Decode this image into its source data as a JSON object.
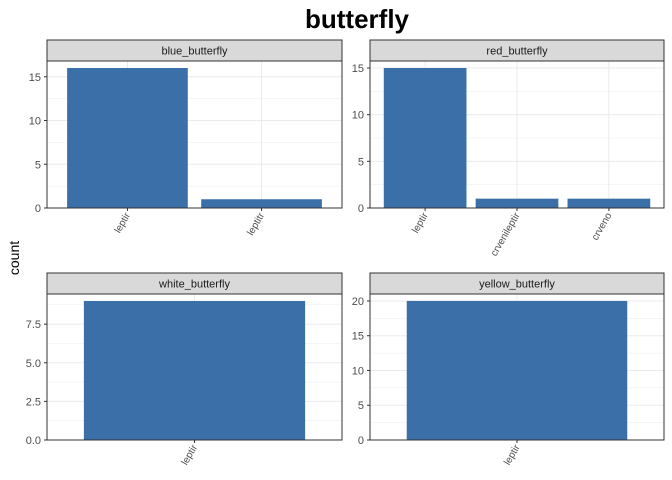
{
  "chart_data": {
    "type": "bar",
    "title": "butterfly",
    "ylabel": "count",
    "xlabel": "",
    "bar_color": "#3a6fa8",
    "strip_fill": "#d9d9d9",
    "panel_border": "#333333",
    "grid_color": "#ebebeb",
    "grid": true,
    "facets": [
      {
        "name": "blue_butterfly",
        "categories": [
          "leptir",
          "leptitr"
        ],
        "values": [
          16,
          1
        ],
        "ylim": [
          0,
          16.8
        ],
        "yticks": [
          0,
          5,
          10,
          15
        ]
      },
      {
        "name": "red_butterfly",
        "categories": [
          "leptir",
          "crvenileptir",
          "crveno"
        ],
        "values": [
          15,
          1,
          1
        ],
        "ylim": [
          0,
          15.75
        ],
        "yticks": [
          0,
          5,
          10,
          15
        ]
      },
      {
        "name": "white_butterfly",
        "categories": [
          "leptir"
        ],
        "values": [
          9
        ],
        "ylim": [
          0,
          9.45
        ],
        "yticks": [
          0.0,
          2.5,
          5.0,
          7.5
        ],
        "ytick_labels": [
          "0.0",
          "2.5",
          "5.0",
          "7.5"
        ]
      },
      {
        "name": "yellow_butterfly",
        "categories": [
          "leptir"
        ],
        "values": [
          20
        ],
        "ylim": [
          0,
          21
        ],
        "yticks": [
          0,
          5,
          10,
          15,
          20
        ]
      }
    ]
  }
}
